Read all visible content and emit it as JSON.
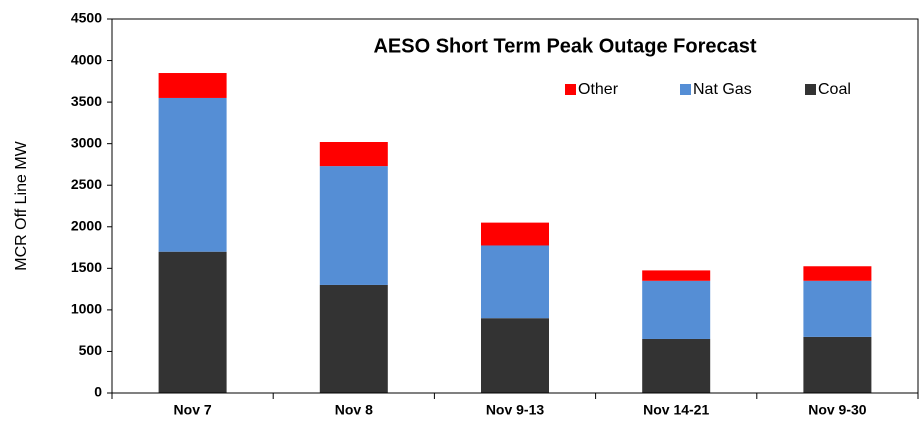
{
  "chart_data": {
    "type": "stacked_bar",
    "title": "AESO Short Term Peak Outage Forecast",
    "y_label": "MCR Off Line MW",
    "categories": [
      "Nov 7",
      "Nov 8",
      "Nov 9-13",
      "Nov 14-21",
      "Nov 9-30"
    ],
    "series": [
      {
        "name": "Coal",
        "color": "#333333",
        "values": [
          1700,
          1300,
          900,
          650,
          675
        ]
      },
      {
        "name": "Nat Gas",
        "color": "#558ed5",
        "values": [
          1850,
          1430,
          875,
          700,
          675
        ]
      },
      {
        "name": "Other",
        "color": "#ff0000",
        "values": [
          300,
          290,
          275,
          125,
          175
        ]
      }
    ],
    "ylim": [
      0,
      4500
    ],
    "yticks": [
      0,
      500,
      1000,
      1500,
      2000,
      2500,
      3000,
      3500,
      4000,
      4500
    ],
    "grid": false,
    "legend": "top"
  }
}
